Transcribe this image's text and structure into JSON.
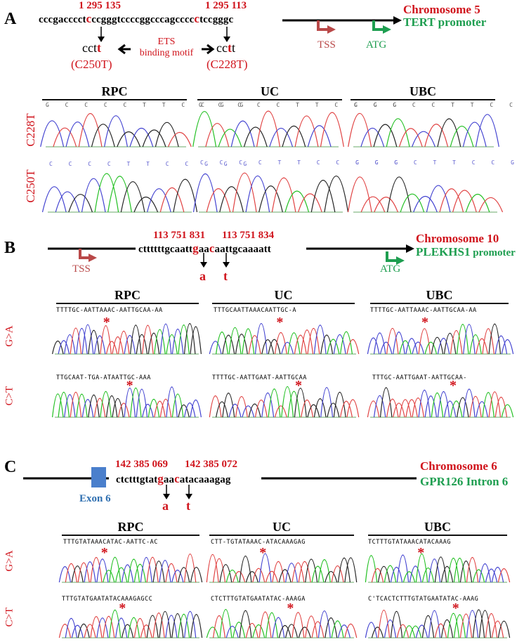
{
  "panels": {
    "A": {
      "letter": "A",
      "coord_left": "1 295 135",
      "coord_right": "1 295 113",
      "seq_pre": "cccgacccct",
      "seq_mut1": "c",
      "seq_mid": "ccgggtccccggcccagcccc",
      "seq_mut2": "c",
      "seq_post": "tccgggc",
      "left_result_pre": "cct",
      "left_result_mut": "t",
      "left_mutation": "(C250T)",
      "right_result_pre": "cc",
      "right_result_mut": "t",
      "right_result_post": "t",
      "right_mutation": "(C228T)",
      "motif_line1": "ETS",
      "motif_line2": "binding motif",
      "chromosome": "Chromosome 5",
      "gene_name": "TERT promoter",
      "tss": "TSS",
      "atg": "ATG",
      "samples": [
        "RPC",
        "UC",
        "UBC"
      ],
      "rows": [
        "C228T",
        "C250T"
      ],
      "row1_bases": "G C C C C T T C C G G",
      "row2_bases": "C C C C T T C C G G G"
    },
    "B": {
      "letter": "B",
      "coord_left": "113 751 831",
      "coord_right": "113 751 834",
      "seq_pre": "cttttttgcaatt",
      "seq_mut1": "g",
      "seq_mid": "aa",
      "seq_mut2": "c",
      "seq_post": "aattgcaaaatt",
      "alt1": "a",
      "alt2": "t",
      "chromosome": "Chromosome 10",
      "gene_bold": "PLEKHS1",
      "gene_rest": " promoter",
      "tss": "TSS",
      "atg": "ATG",
      "samples": [
        "RPC",
        "UC",
        "UBC"
      ],
      "rows": [
        "G>A",
        "C>T"
      ],
      "bases": {
        "RPC_GA": "TTTTGC-AATTAAAC-AATTGCAA-AA",
        "UC_GA": "TTTGCAATTAAACAATTGC-A",
        "UBC_GA": "TTTTGC-AATTAAAC-AATTGCAA-AA",
        "RPC_CT": "TTGCAAT-TGA-ATAATTGC-AAA",
        "UC_CT": "TTTTGC-AATTGAAT-AATTGCAA",
        "UBC_CT": "TTTGC-AATTGAAT-AATTGCAA-"
      }
    },
    "C": {
      "letter": "C",
      "coord_left": "142 385 069",
      "coord_right": "142 385 072",
      "seq_pre": "ctctttgtat",
      "seq_mut1": "g",
      "seq_mid": "aa",
      "seq_mut2": "c",
      "seq_post": "atacaaagag",
      "alt1": "a",
      "alt2": "t",
      "exon_label": "Exon 6",
      "chromosome": "Chromosome 6",
      "gene_name": "GPR126 Intron 6",
      "samples": [
        "RPC",
        "UC",
        "UBC"
      ],
      "rows": [
        "G>A",
        "C>T"
      ],
      "bases": {
        "RPC_GA": "TTTGTATAAACATAC-AATTC-AC",
        "UC_GA": "CTT-TGTATAAAC-ATACAAAGAG",
        "UBC_GA": "TCTTTGTATAAACATACAAAG",
        "RPC_CT": "TTTGTATGAATATACAAAGAGCC",
        "UC_CT": "CTCTTTGTATGAATATAC-AAAGA",
        "UBC_CT": "C'TCACTCTTTGTATGAATATAC-AAAG"
      }
    }
  },
  "colors": {
    "mutation_red": "#d0141c",
    "gene_green": "#1e9e50",
    "tss_red": "#b94848",
    "exon_blue": "#4a7fcc",
    "trace_A": "#1fbf1f",
    "trace_C": "#4040d0",
    "trace_G": "#222222",
    "trace_T": "#e04040",
    "highlight": "#66dd33"
  }
}
